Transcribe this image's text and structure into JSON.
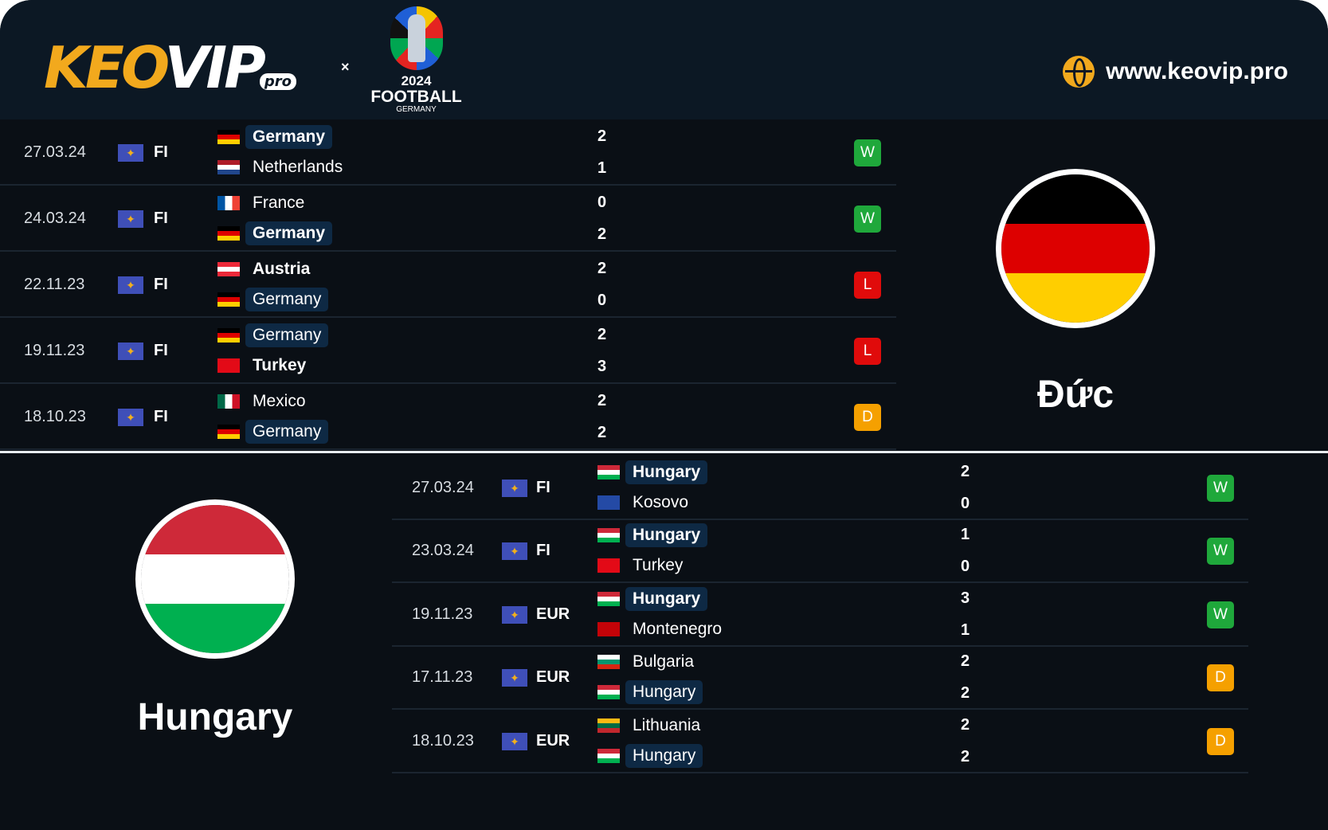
{
  "header": {
    "logo_text": "KEOVIP",
    "logo_suffix": "pro",
    "separator": "×",
    "euro_year": "2024",
    "euro_title": "FOOTBALL",
    "euro_host": "GERMANY",
    "website": "www.keovip.pro",
    "website_icon": "globe-icon"
  },
  "colors": {
    "win": "#1fa83b",
    "loss": "#e00b0b",
    "draw": "#f5a000",
    "pill": "#0e2944",
    "accent": "#f2a91d"
  },
  "flags": {
    "Germany": [
      "#000000",
      "#dd0000",
      "#ffce00"
    ],
    "Netherlands": [
      "#ae1c28",
      "#ffffff",
      "#21468b"
    ],
    "France": [
      "v",
      "#0055a4",
      "#ffffff",
      "#ef4135"
    ],
    "Austria": [
      "#ed2939",
      "#ffffff",
      "#ed2939"
    ],
    "Turkey": [
      "#e30a17",
      "#e30a17",
      "#e30a17"
    ],
    "Mexico": [
      "v",
      "#006847",
      "#ffffff",
      "#ce1126"
    ],
    "Hungary": [
      "#ce2939",
      "#ffffff",
      "#00b050"
    ],
    "Kosovo": [
      "#244aa5",
      "#244aa5",
      "#244aa5"
    ],
    "Montenegro": [
      "#c40308",
      "#c40308",
      "#c40308"
    ],
    "Bulgaria": [
      "#ffffff",
      "#00966e",
      "#d62612"
    ],
    "Lithuania": [
      "#fdb913",
      "#006a44",
      "#c1272d"
    ]
  },
  "germany": {
    "name": "Đức",
    "matches": [
      {
        "date": "27.03.24",
        "comp": "FI",
        "home": "Germany",
        "away": "Netherlands",
        "hs": "2",
        "as": "1",
        "result": "W",
        "featured": "home"
      },
      {
        "date": "24.03.24",
        "comp": "FI",
        "home": "France",
        "away": "Germany",
        "hs": "0",
        "as": "2",
        "result": "W",
        "featured": "away"
      },
      {
        "date": "22.11.23",
        "comp": "FI",
        "home": "Austria",
        "away": "Germany",
        "hs": "2",
        "as": "0",
        "result": "L",
        "featured": "away"
      },
      {
        "date": "19.11.23",
        "comp": "FI",
        "home": "Germany",
        "away": "Turkey",
        "hs": "2",
        "as": "3",
        "result": "L",
        "featured": "home"
      },
      {
        "date": "18.10.23",
        "comp": "FI",
        "home": "Mexico",
        "away": "Germany",
        "hs": "2",
        "as": "2",
        "result": "D",
        "featured": "away"
      }
    ]
  },
  "hungary": {
    "name": "Hungary",
    "matches": [
      {
        "date": "27.03.24",
        "comp": "FI",
        "home": "Hungary",
        "away": "Kosovo",
        "hs": "2",
        "as": "0",
        "result": "W",
        "featured": "home"
      },
      {
        "date": "23.03.24",
        "comp": "FI",
        "home": "Hungary",
        "away": "Turkey",
        "hs": "1",
        "as": "0",
        "result": "W",
        "featured": "home"
      },
      {
        "date": "19.11.23",
        "comp": "EUR",
        "home": "Hungary",
        "away": "Montenegro",
        "hs": "3",
        "as": "1",
        "result": "W",
        "featured": "home"
      },
      {
        "date": "17.11.23",
        "comp": "EUR",
        "home": "Bulgaria",
        "away": "Hungary",
        "hs": "2",
        "as": "2",
        "result": "D",
        "featured": "away"
      },
      {
        "date": "18.10.23",
        "comp": "EUR",
        "home": "Lithuania",
        "away": "Hungary",
        "hs": "2",
        "as": "2",
        "result": "D",
        "featured": "away"
      }
    ]
  }
}
